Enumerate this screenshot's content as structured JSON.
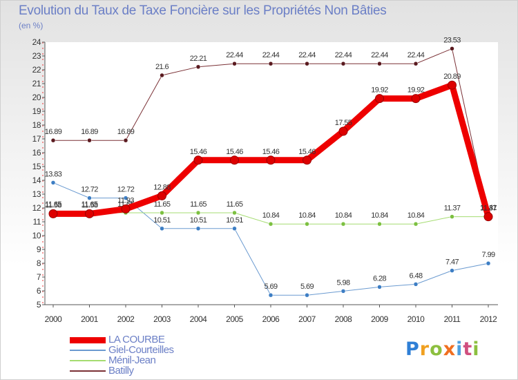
{
  "title": "Evolution du Taux de Taxe Foncière sur les Propriétés Non Bâties",
  "subtitle": "(en %)",
  "logo": {
    "text": "Proxiti",
    "letter_colors": [
      "#2f7fd6",
      "#f0a020",
      "#8cbf3f",
      "#f06f20",
      "#4fa0e0",
      "#d04f7f",
      "#8cbf3f"
    ]
  },
  "chart_data": {
    "type": "line",
    "title": "Evolution du Taux de Taxe Foncière sur les Propriétés Non Bâties",
    "ylabel": "(en %)",
    "xlabel": "",
    "ylim": [
      5,
      24
    ],
    "yticks": [
      "5",
      "6",
      "7",
      "8",
      "9",
      "10",
      "11",
      "12",
      "13",
      "14",
      "15",
      "16",
      "17",
      "18",
      "19",
      "20",
      "21",
      "22",
      "23",
      "24"
    ],
    "categories": [
      "2000",
      "2001",
      "2002",
      "2003",
      "2004",
      "2005",
      "2006",
      "2007",
      "2008",
      "2009",
      "2010",
      "2011",
      "2012"
    ],
    "series": [
      {
        "name": "Batilly",
        "color": "#7a3035",
        "marker": "#5a1a1f",
        "width": 1,
        "values": [
          16.89,
          16.89,
          16.89,
          21.6,
          22.21,
          22.44,
          22.44,
          22.44,
          22.44,
          22.44,
          22.44,
          23.53,
          11.41
        ],
        "labels": [
          "16.89",
          "16.89",
          "16.89",
          "21.6",
          "22.21",
          "22.44",
          "22.44",
          "22.44",
          "22.44",
          "22.44",
          "22.44",
          "23.53",
          "11.41"
        ]
      },
      {
        "name": "Giel-Courteilles",
        "color": "#6a9ad0",
        "marker": "#3d7ec4",
        "width": 1,
        "values": [
          13.83,
          12.72,
          12.72,
          10.51,
          10.51,
          10.51,
          5.69,
          5.69,
          5.98,
          6.28,
          6.48,
          7.47,
          7.99
        ],
        "labels": [
          "13.83",
          "12.72",
          "12.72",
          "10.51",
          "10.51",
          "10.51",
          "5.69",
          "5.69",
          "5.98",
          "6.28",
          "6.48",
          "7.47",
          "7.99"
        ]
      },
      {
        "name": "Ménil-Jean",
        "color": "#a4dc70",
        "marker": "#7cc040",
        "width": 1,
        "values": [
          11.65,
          11.65,
          11.65,
          11.65,
          11.65,
          11.65,
          10.84,
          10.84,
          10.84,
          10.84,
          10.84,
          11.37,
          11.37
        ],
        "labels": [
          "11.65",
          "11.65",
          "11.65",
          "11.65",
          "11.65",
          "11.65",
          "10.84",
          "10.84",
          "10.84",
          "10.84",
          "10.84",
          "11.37",
          "11.37"
        ]
      },
      {
        "name": "LA COURBE",
        "color": "#ee0000",
        "marker": "#dd0000",
        "width": 9,
        "values": [
          11.58,
          11.58,
          11.93,
          12.88,
          15.46,
          15.46,
          15.46,
          15.46,
          17.55,
          19.92,
          19.92,
          20.89,
          11.37
        ],
        "labels": [
          "11.58",
          "11.58",
          "11.93",
          "12.88",
          "15.46",
          "15.46",
          "15.46",
          "15.46",
          "17.55",
          "19.92",
          "19.92",
          "20.89",
          "11.37"
        ]
      }
    ],
    "legend_order": [
      "LA COURBE",
      "Giel-Courteilles",
      "Ménil-Jean",
      "Batilly"
    ]
  }
}
